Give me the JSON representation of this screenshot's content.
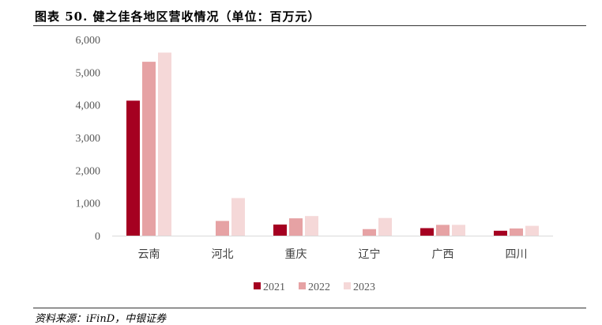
{
  "title": "图表 50. 健之佳各地区营收情况（单位：百万元）",
  "source": "资料来源：iFinD，中银证券",
  "colors": {
    "2021": "#A50021",
    "2022": "#E6A2A4",
    "2023": "#F5D8D8"
  },
  "chart_data": {
    "type": "bar",
    "title": "图表 50. 健之佳各地区营收情况（单位：百万元）",
    "xlabel": "",
    "ylabel": "",
    "ylim": [
      0,
      6000
    ],
    "yticks": [
      0,
      1000,
      2000,
      3000,
      4000,
      5000,
      6000
    ],
    "ytick_labels": [
      "0",
      "1,000",
      "2,000",
      "3,000",
      "4,000",
      "5,000",
      "6,000"
    ],
    "grid": false,
    "legend": "bottom",
    "categories": [
      "云南",
      "河北",
      "重庆",
      "辽宁",
      "广西",
      "四川"
    ],
    "series": [
      {
        "name": "2021",
        "values": [
          4130,
          0,
          340,
          0,
          230,
          150
        ]
      },
      {
        "name": "2022",
        "values": [
          5320,
          450,
          530,
          200,
          330,
          220
        ]
      },
      {
        "name": "2023",
        "values": [
          5600,
          1150,
          600,
          540,
          330,
          300
        ]
      }
    ]
  }
}
